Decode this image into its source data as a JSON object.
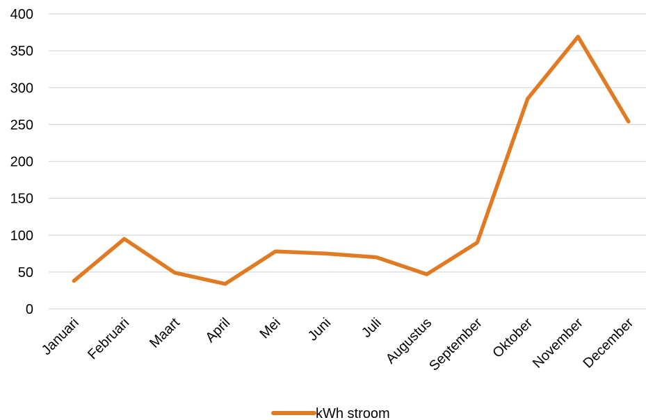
{
  "chart_data": {
    "type": "line",
    "title": "",
    "xlabel": "",
    "ylabel": "",
    "categories": [
      "Januari",
      "Februari",
      "Maart",
      "April",
      "Mei",
      "Juni",
      "Juli",
      "Augustus",
      "September",
      "Oktober",
      "November",
      "December"
    ],
    "series": [
      {
        "name": "kWh stroom",
        "color": "#e07b24",
        "values": [
          38,
          95,
          49,
          34,
          78,
          75,
          70,
          47,
          90,
          285,
          369,
          254
        ]
      }
    ],
    "ylim": [
      0,
      400
    ],
    "yticks": [
      0,
      50,
      100,
      150,
      200,
      250,
      300,
      350,
      400
    ],
    "grid": true,
    "legend_position": "bottom"
  }
}
